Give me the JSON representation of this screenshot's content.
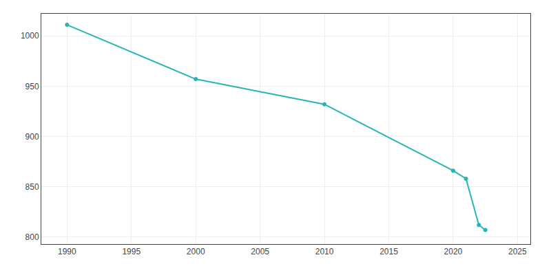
{
  "chart_data": {
    "type": "line",
    "x": [
      1990,
      2000,
      2010,
      2020,
      2021,
      2022,
      2022.5
    ],
    "values": [
      1011,
      957,
      932,
      866,
      858,
      812,
      807
    ],
    "color": "#2ab5b5",
    "marker": "circle",
    "line_style": "solid",
    "xlim": [
      1988,
      2026
    ],
    "ylim": [
      793,
      1022
    ],
    "xticks": [
      1990,
      1995,
      2000,
      2005,
      2010,
      2015,
      2020,
      2025
    ],
    "yticks": [
      800,
      850,
      900,
      950,
      1000
    ],
    "grid": true
  }
}
